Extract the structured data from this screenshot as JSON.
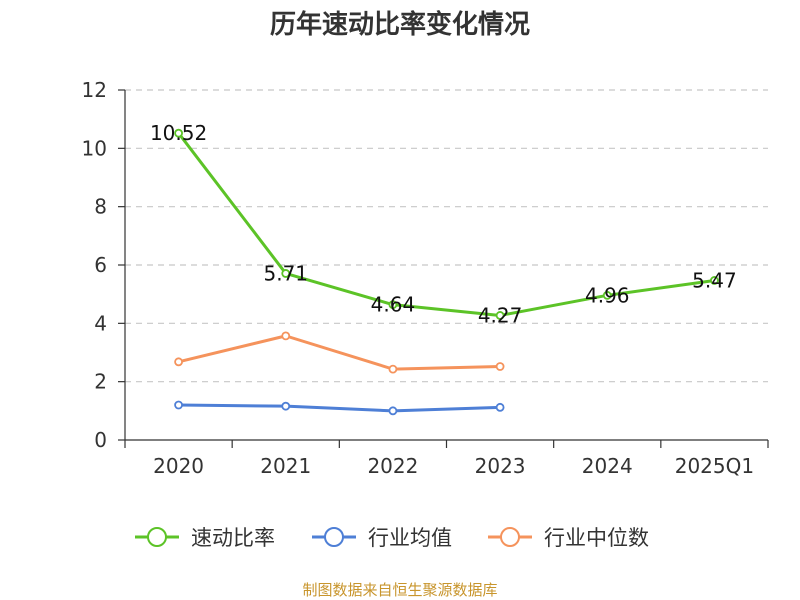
{
  "chart_data": {
    "type": "line",
    "title": "历年速动比率变化情况",
    "categories": [
      "2020",
      "2021",
      "2022",
      "2023",
      "2024",
      "2025Q1"
    ],
    "ylim": [
      0,
      12
    ],
    "yticks": [
      0,
      2,
      4,
      6,
      8,
      10,
      12
    ],
    "grid": true,
    "legend_position": "bottom",
    "series": [
      {
        "name": "速动比率",
        "color": "#5cc327",
        "values": [
          10.52,
          5.71,
          4.64,
          4.27,
          4.96,
          5.47
        ],
        "labels": [
          "10.52",
          "5.71",
          "4.64",
          "4.27",
          "4.96",
          "5.47"
        ]
      },
      {
        "name": "行业均值",
        "color": "#4e7fd6",
        "values": [
          1.2,
          1.16,
          1.0,
          1.12,
          null,
          null
        ]
      },
      {
        "name": "行业中位数",
        "color": "#f5935c",
        "values": [
          2.68,
          3.57,
          2.43,
          2.52,
          null,
          null
        ]
      }
    ],
    "source": "制图数据来自恒生聚源数据库"
  }
}
